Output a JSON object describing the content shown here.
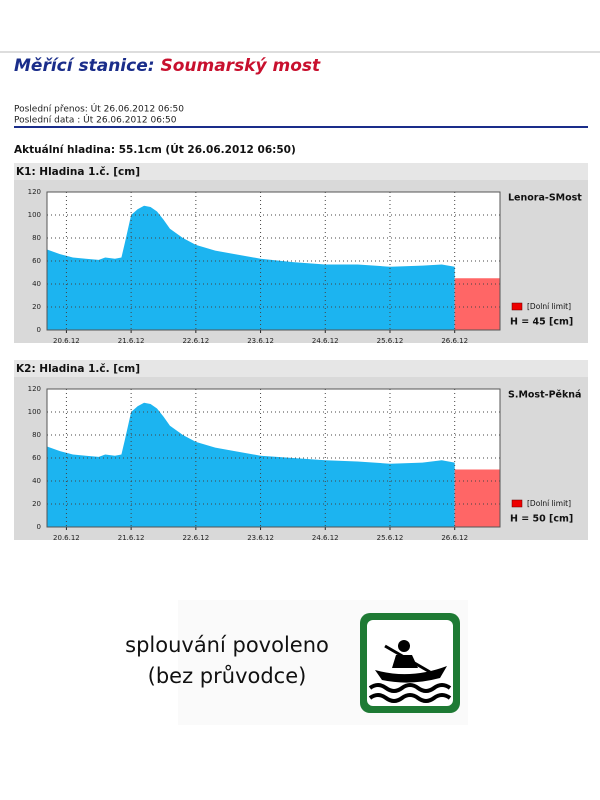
{
  "header": {
    "title_prefix": "Měřící stanice:",
    "title_station": "Soumarský most",
    "last_transfer": "Poslední přenos: Út 26.06.2012 06:50",
    "last_data": "Poslední data : Út 26.06.2012 06:50",
    "current_level": "Aktuální hladina: 55.1cm (Út 26.06.2012 06:50)"
  },
  "chart_data": [
    {
      "type": "area",
      "title": "K1: Hladina 1.č. [cm]",
      "station": "Lenora-SMost",
      "x": [
        19.7,
        19.9,
        20.1,
        20.3,
        20.5,
        20.6,
        20.75,
        20.85,
        20.9,
        21.0,
        21.1,
        21.2,
        21.3,
        21.4,
        21.5,
        21.6,
        21.8,
        22.0,
        22.3,
        22.6,
        23.0,
        23.5,
        24.0,
        24.5,
        25.0,
        25.5,
        25.8,
        26.0
      ],
      "values": [
        70,
        66,
        63,
        62,
        61,
        63,
        62,
        63,
        75,
        100,
        105,
        108,
        107,
        103,
        96,
        88,
        80,
        74,
        69,
        66,
        62,
        59,
        57,
        57,
        55,
        56,
        57,
        55
      ],
      "color": "#1cb4f0",
      "xlim": [
        19.7,
        26.7
      ],
      "xticks": [
        {
          "value": 20,
          "label": "20.6.12"
        },
        {
          "value": 21,
          "label": "21.6.12"
        },
        {
          "value": 22,
          "label": "22.6.12"
        },
        {
          "value": 23,
          "label": "23.6.12"
        },
        {
          "value": 24,
          "label": "24.6.12"
        },
        {
          "value": 25,
          "label": "25.6.12"
        },
        {
          "value": 26,
          "label": "26.6.12"
        }
      ],
      "ylim": [
        0,
        120
      ],
      "yticks": [
        0,
        20,
        40,
        60,
        80,
        100,
        120
      ],
      "grid": true,
      "limit": 45,
      "limit_color": "#ff6666",
      "legend_label": "[Dolní limit]",
      "limit_label": "H = 45 [cm]"
    },
    {
      "type": "area",
      "title": "K2: Hladina 1.č. [cm]",
      "station": "S.Most-Pěkná",
      "x": [
        19.7,
        19.9,
        20.1,
        20.3,
        20.5,
        20.6,
        20.75,
        20.85,
        20.9,
        21.0,
        21.1,
        21.2,
        21.3,
        21.4,
        21.5,
        21.6,
        21.8,
        22.0,
        22.3,
        22.6,
        23.0,
        23.5,
        24.0,
        24.5,
        25.0,
        25.5,
        25.8,
        26.0
      ],
      "values": [
        70,
        66,
        63,
        62,
        61,
        63,
        62,
        63,
        75,
        100,
        105,
        108,
        107,
        103,
        96,
        88,
        80,
        74,
        69,
        66,
        62,
        60,
        58,
        57,
        55,
        56,
        58,
        56
      ],
      "color": "#1cb4f0",
      "xlim": [
        19.7,
        26.7
      ],
      "xticks": [
        {
          "value": 20,
          "label": "20.6.12"
        },
        {
          "value": 21,
          "label": "21.6.12"
        },
        {
          "value": 22,
          "label": "22.6.12"
        },
        {
          "value": 23,
          "label": "23.6.12"
        },
        {
          "value": 24,
          "label": "24.6.12"
        },
        {
          "value": 25,
          "label": "25.6.12"
        },
        {
          "value": 26,
          "label": "26.6.12"
        }
      ],
      "ylim": [
        0,
        120
      ],
      "yticks": [
        0,
        20,
        40,
        60,
        80,
        100,
        120
      ],
      "grid": true,
      "limit": 50,
      "limit_color": "#ff6666",
      "legend_label": "[Dolní limit]",
      "limit_label": "H = 50 [cm]"
    }
  ],
  "footer": {
    "line1": "splouvání povoleno",
    "line2": "(bez průvodce)"
  }
}
